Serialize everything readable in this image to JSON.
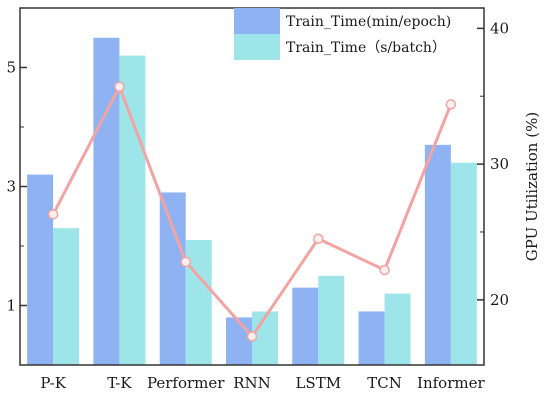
{
  "chart_data": {
    "type": "bar",
    "categories": [
      "P-K",
      "T-K",
      "Performer",
      "RNN",
      "LSTM",
      "TCN",
      "Informer"
    ],
    "series": [
      {
        "name": "Train_Time(min/epoch)",
        "type": "bar",
        "axis": "left",
        "color": "#8fb2f2",
        "values": [
          3.2,
          5.5,
          2.9,
          0.8,
          1.3,
          0.9,
          3.7
        ]
      },
      {
        "name": "Train_Time（s/batch）",
        "type": "bar",
        "axis": "left",
        "color": "#9ee5ea",
        "values": [
          2.3,
          5.2,
          2.1,
          0.9,
          1.5,
          1.2,
          3.4
        ]
      },
      {
        "name": "",
        "type": "line",
        "axis": "right",
        "color": "#f4a3a3",
        "values": [
          26.3,
          35.7,
          22.8,
          17.3,
          24.5,
          22.2,
          34.4
        ]
      }
    ],
    "left_axis": {
      "ylim": [
        0,
        6
      ],
      "ticks": [
        1,
        3,
        5
      ],
      "ylabel": ""
    },
    "right_axis": {
      "ylim": [
        15.2,
        41.5
      ],
      "ticks": [
        20,
        30,
        40
      ],
      "ylabel": "GPU Utilization (%)"
    },
    "legend": "top-center",
    "grid": false
  }
}
